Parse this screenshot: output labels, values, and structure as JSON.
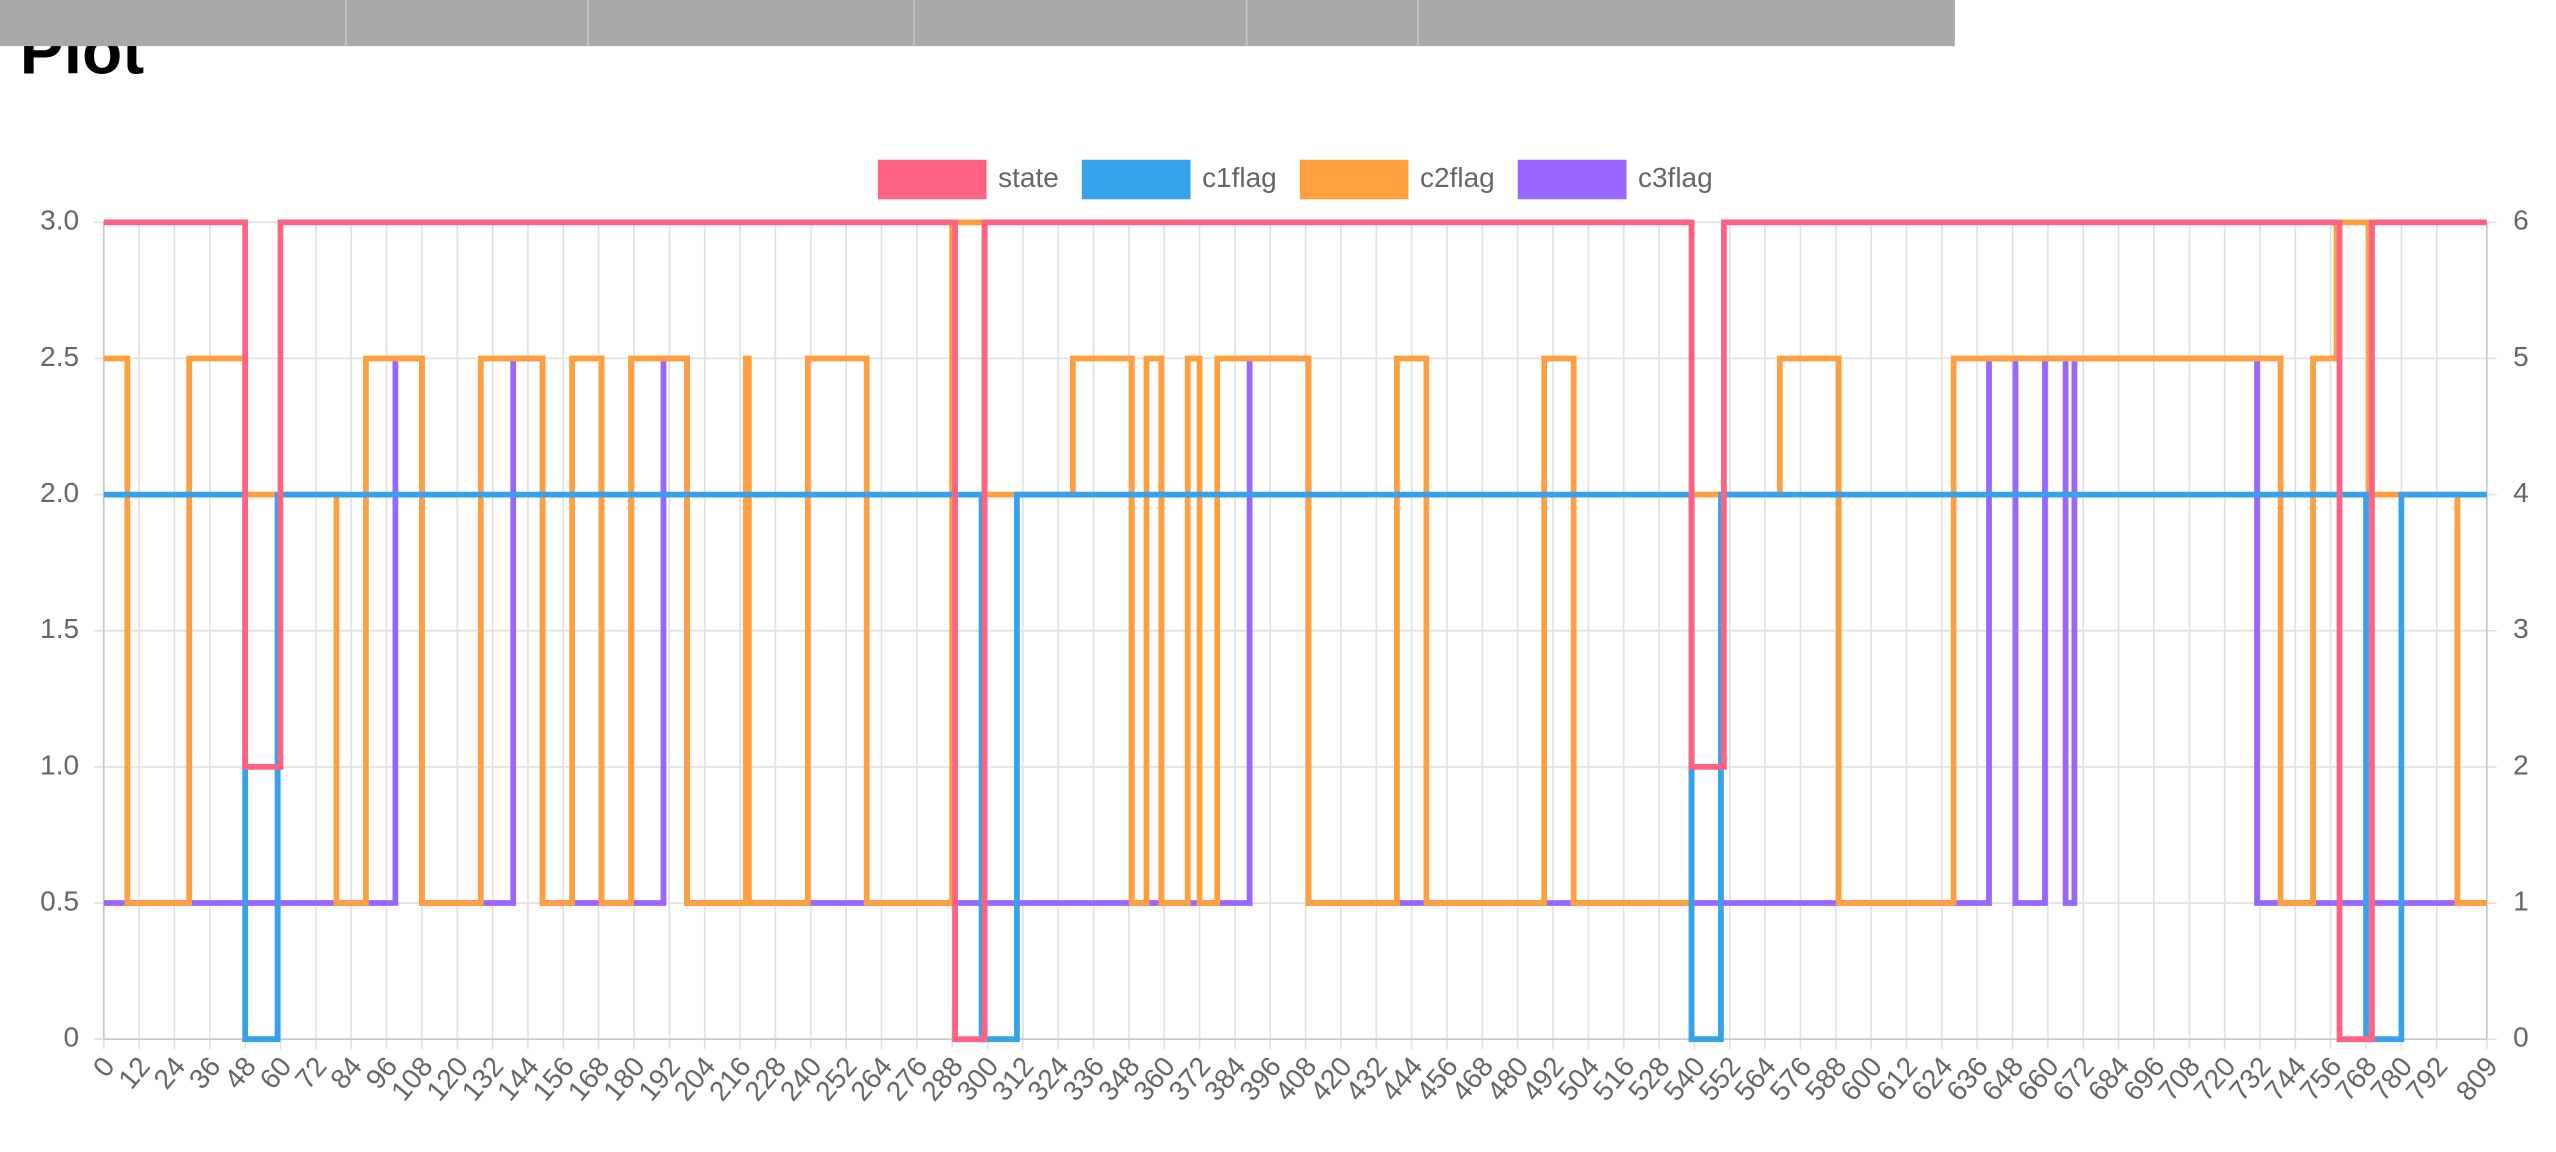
{
  "heading": "Plot",
  "chart_data": {
    "type": "line",
    "stepped": true,
    "xlim": [
      0,
      809
    ],
    "xticks": [
      0,
      12,
      24,
      36,
      48,
      60,
      72,
      84,
      96,
      108,
      120,
      132,
      144,
      156,
      168,
      180,
      192,
      204,
      216,
      228,
      240,
      252,
      264,
      276,
      288,
      300,
      312,
      324,
      336,
      348,
      360,
      372,
      384,
      396,
      408,
      420,
      432,
      444,
      456,
      468,
      480,
      492,
      504,
      516,
      528,
      540,
      552,
      564,
      576,
      588,
      600,
      612,
      624,
      636,
      648,
      660,
      672,
      684,
      696,
      708,
      720,
      732,
      744,
      756,
      768,
      780,
      792,
      809
    ],
    "ylim": [
      0,
      3
    ],
    "yticks": [
      0,
      0.5,
      {
        "value": 1,
        "label": "1.0"
      },
      1.5,
      {
        "value": 2,
        "label": "2.0"
      },
      2.5,
      {
        "value": 3,
        "label": "3.0"
      }
    ],
    "y2lim": [
      0,
      6
    ],
    "y2ticks": [
      0,
      1,
      2,
      3,
      4,
      5,
      6
    ],
    "grid": true,
    "legend": "top",
    "series": [
      {
        "name": "state",
        "color": "#ff6384",
        "x": [
          0,
          48,
          60,
          289,
          299,
          539,
          550,
          759,
          770,
          809
        ],
        "values": [
          3,
          1,
          3,
          0,
          3,
          1,
          3,
          0,
          3,
          3
        ]
      },
      {
        "name": "c1flag",
        "color": "#36a2eb",
        "axis": "y2",
        "x": [
          0,
          48,
          59,
          298,
          310,
          539,
          549,
          768,
          780,
          809
        ],
        "values": [
          4,
          0,
          4,
          0,
          4,
          0,
          4,
          0,
          4,
          4
        ]
      },
      {
        "name": "c2flag",
        "color": "#ff9f40",
        "axis": "y2",
        "x": [
          0,
          8,
          29,
          48,
          79,
          89,
          108,
          128,
          149,
          159,
          169,
          179,
          198,
          218,
          219,
          239,
          259,
          288,
          299,
          329,
          349,
          354,
          359,
          368,
          372,
          378,
          409,
          439,
          449,
          489,
          499,
          539,
          550,
          569,
          589,
          628,
          739,
          750,
          758,
          769,
          799,
          809
        ],
        "values": [
          5,
          1,
          5,
          4,
          1,
          5,
          1,
          5,
          1,
          5,
          1,
          5,
          1,
          5,
          1,
          5,
          1,
          6,
          4,
          5,
          1,
          5,
          1,
          5,
          1,
          5,
          1,
          5,
          1,
          5,
          1,
          4,
          4,
          5,
          1,
          5,
          1,
          5,
          6,
          4,
          1,
          1
        ]
      },
      {
        "name": "c3flag",
        "color": "#9966ff",
        "axis": "y2",
        "x": [
          0,
          99,
          108,
          139,
          149,
          190,
          198,
          389,
          409,
          632,
          640,
          649,
          659,
          666,
          669,
          731,
          809
        ],
        "values": [
          1,
          5,
          1,
          5,
          1,
          5,
          1,
          5,
          1,
          1,
          5,
          1,
          5,
          1,
          5,
          1,
          1
        ]
      }
    ]
  }
}
